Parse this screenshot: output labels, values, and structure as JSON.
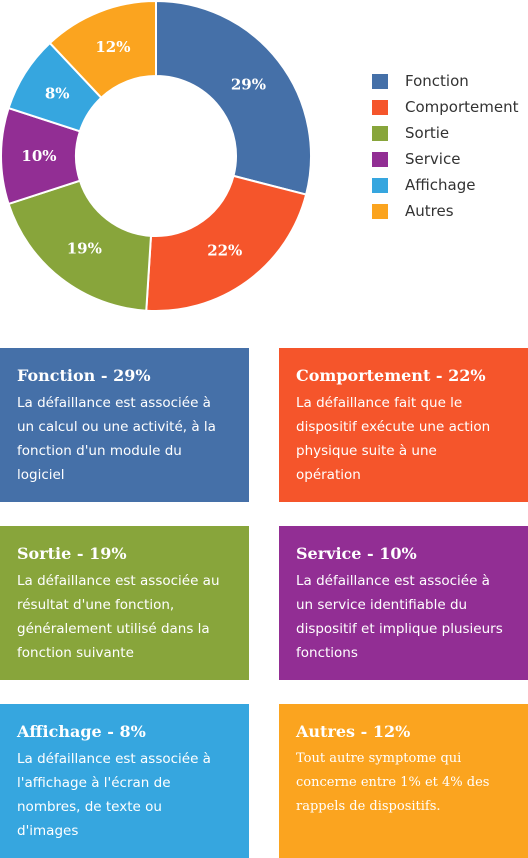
{
  "chart_data": {
    "type": "pie",
    "variant": "donut",
    "slices": [
      {
        "name": "Fonction",
        "value": 29,
        "label": "29%",
        "color": "#4570a8"
      },
      {
        "name": "Comportement",
        "value": 22,
        "label": "22%",
        "color": "#f5552b"
      },
      {
        "name": "Sortie",
        "value": 19,
        "label": "19%",
        "color": "#88a53b"
      },
      {
        "name": "Service",
        "value": 10,
        "label": "10%",
        "color": "#922e94"
      },
      {
        "name": "Affichage",
        "value": 8,
        "label": "8%",
        "color": "#36a6df"
      },
      {
        "name": "Autres",
        "value": 12,
        "label": "12%",
        "color": "#fba41f"
      }
    ],
    "legend_position": "right"
  },
  "cards": [
    {
      "title": "Fonction - 29%",
      "color": "#4570a8",
      "lines": [
        "La défaillance est associée à",
        "un calcul ou une activité, à la",
        "fonction d'un module du",
        "logiciel"
      ]
    },
    {
      "title": "Comportement - 22%",
      "color": "#f5552b",
      "lines": [
        "La défaillance fait que le",
        "dispositif exécute une action",
        "physique suite à une",
        "opération"
      ]
    },
    {
      "title": "Sortie - 19%",
      "color": "#88a53b",
      "lines": [
        "La défaillance est associée au",
        "résultat d'une fonction,",
        "généralement utilisé dans la",
        "fonction suivante"
      ]
    },
    {
      "title": "Service - 10%",
      "color": "#922e94",
      "lines": [
        "La défaillance est associée à",
        "un service identifiable du",
        "dispositif et implique plusieurs",
        "fonctions"
      ]
    },
    {
      "title": "Affichage - 8%",
      "color": "#36a6df",
      "lines": [
        "La défaillance est associée à",
        "l'affichage à l'écran de",
        "nombres, de texte ou",
        "d'images"
      ]
    },
    {
      "title": "Autres - 12%",
      "color": "#fba41f",
      "lines": [
        "Tout autre symptome qui",
        "concerne entre 1% et 4% des",
        "rappels de dispositifs."
      ]
    }
  ]
}
